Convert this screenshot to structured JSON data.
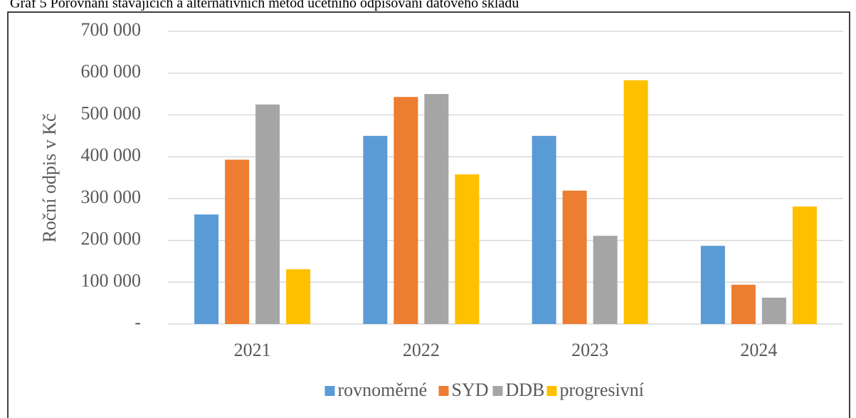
{
  "chart_data": {
    "type": "bar",
    "title": "Graf 5 Porovnání stávajících a alternativních metod účetního odpisování datového skladu",
    "y_label": "Roční odpis v Kč",
    "categories": [
      "2021",
      "2022",
      "2023",
      "2024"
    ],
    "series": [
      {
        "name": "rovnoměrné",
        "color": "#5b9bd5",
        "values": [
          262000,
          450000,
          450000,
          187000
        ]
      },
      {
        "name": "SYD",
        "color": "#ed7d31",
        "values": [
          393000,
          543000,
          319000,
          94000
        ]
      },
      {
        "name": "DDB",
        "color": "#a5a5a5",
        "values": [
          525000,
          550000,
          211000,
          63000
        ]
      },
      {
        "name": "progresivní",
        "color": "#ffc000",
        "values": [
          131000,
          358000,
          583000,
          281000
        ]
      }
    ],
    "ylim": [
      0,
      700000
    ],
    "yticks": [
      {
        "value": 0,
        "label": "-"
      },
      {
        "value": 100000,
        "label": "100 000"
      },
      {
        "value": 200000,
        "label": "200 000"
      },
      {
        "value": 300000,
        "label": "300 000"
      },
      {
        "value": 400000,
        "label": "400 000"
      },
      {
        "value": 500000,
        "label": "500 000"
      },
      {
        "value": 600000,
        "label": "600 000"
      },
      {
        "value": 700000,
        "label": "700 000"
      }
    ],
    "grid": true,
    "legend": "bottom"
  }
}
